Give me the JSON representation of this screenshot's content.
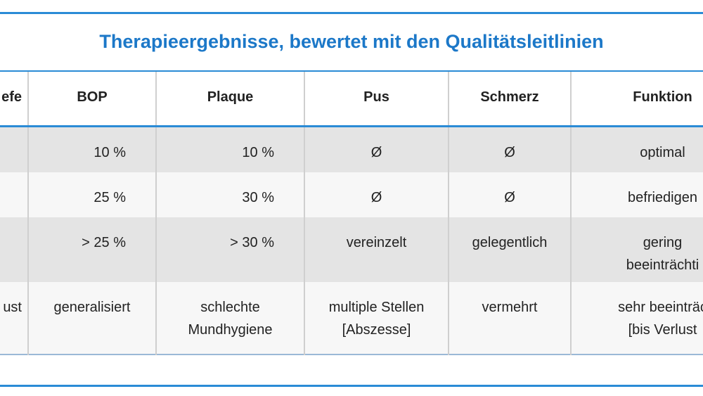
{
  "title": "Therapieergebnisse, bewertet mit den Qualitätsleitlinien",
  "table": {
    "header": [
      "efe",
      "BOP",
      "Plaque",
      "Pus",
      "Schmerz",
      "Funktion"
    ],
    "rows": [
      [
        null,
        "10 %",
        "10 %",
        "Ø",
        "Ø",
        "optimal"
      ],
      [
        null,
        "25 %",
        "30 %",
        "Ø",
        "Ø",
        "befriedigen"
      ],
      [
        null,
        "> 25 %",
        "> 30 %",
        "vereinzelt",
        "gelegentlich",
        "gering\nbeeinträchti"
      ],
      [
        "ust",
        "generalisiert",
        "schlechte\nMundhygiene",
        "multiple Stellen\n[Abszesse]",
        "vermehrt",
        "sehr beeinträc\n[bis Verlust"
      ]
    ]
  }
}
